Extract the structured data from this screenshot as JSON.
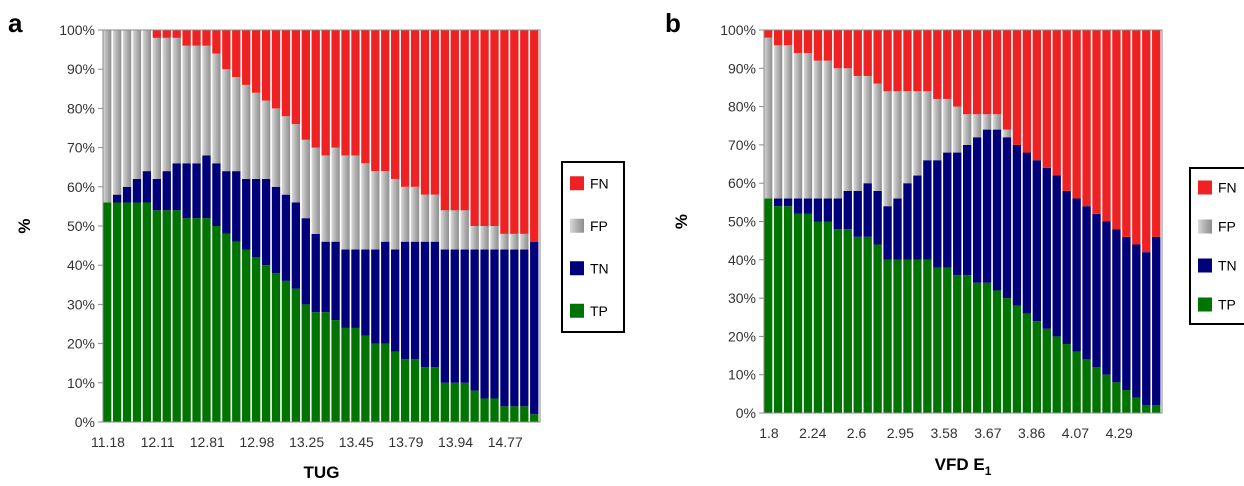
{
  "chart_data": [
    {
      "panel_label": "a",
      "type": "stacked_bar",
      "xlabel": "TUG",
      "ylabel": "%",
      "ylim": [
        0,
        100
      ],
      "y_ticks": [
        "0%",
        "10%",
        "20%",
        "30%",
        "40%",
        "50%",
        "60%",
        "70%",
        "80%",
        "90%",
        "100%"
      ],
      "x_tick_labels": [
        "11.18",
        "12.11",
        "12.81",
        "12.98",
        "13.25",
        "13.45",
        "13.79",
        "13.94",
        "14.77"
      ],
      "legend": [
        "FN",
        "FP",
        "TN",
        "TP"
      ],
      "legend_position": "right",
      "colors": {
        "FN": "#ee2222",
        "FP": "#b4b4b4",
        "TN": "#00007a",
        "TP": "#007400"
      },
      "series": [
        {
          "name": "TP",
          "values": [
            56,
            56,
            56,
            56,
            56,
            54,
            54,
            54,
            52,
            52,
            52,
            50,
            48,
            46,
            44,
            42,
            40,
            38,
            36,
            34,
            30,
            28,
            28,
            26,
            24,
            24,
            22,
            20,
            20,
            18,
            16,
            16,
            14,
            14,
            10,
            10,
            10,
            8,
            6,
            6,
            4,
            4,
            4,
            2
          ]
        },
        {
          "name": "TN",
          "values": [
            0,
            2,
            4,
            6,
            8,
            8,
            10,
            12,
            14,
            14,
            16,
            16,
            16,
            18,
            18,
            20,
            22,
            22,
            22,
            22,
            22,
            20,
            18,
            20,
            20,
            20,
            22,
            24,
            26,
            26,
            30,
            30,
            32,
            32,
            34,
            34,
            34,
            36,
            38,
            38,
            40,
            40,
            40,
            44
          ]
        },
        {
          "name": "FP",
          "values": [
            44,
            42,
            40,
            38,
            36,
            36,
            34,
            32,
            30,
            30,
            28,
            28,
            26,
            24,
            24,
            22,
            20,
            20,
            20,
            20,
            20,
            22,
            22,
            24,
            24,
            24,
            22,
            20,
            18,
            18,
            14,
            14,
            12,
            12,
            10,
            10,
            10,
            6,
            6,
            6,
            4,
            4,
            4,
            0
          ]
        },
        {
          "name": "FN",
          "values": [
            0,
            0,
            0,
            0,
            0,
            2,
            2,
            2,
            4,
            4,
            4,
            6,
            10,
            12,
            14,
            16,
            18,
            20,
            22,
            24,
            28,
            30,
            32,
            30,
            32,
            32,
            34,
            36,
            36,
            38,
            40,
            40,
            42,
            42,
            46,
            46,
            46,
            50,
            50,
            50,
            52,
            52,
            52,
            54
          ]
        }
      ]
    },
    {
      "panel_label": "b",
      "type": "stacked_bar",
      "xlabel_main": "VFD E",
      "xlabel_sub": "1",
      "ylabel": "%",
      "ylim": [
        0,
        100
      ],
      "y_ticks": [
        "0%",
        "10%",
        "20%",
        "30%",
        "40%",
        "50%",
        "60%",
        "70%",
        "80%",
        "90%",
        "100%"
      ],
      "x_tick_labels": [
        "1.8",
        "2.24",
        "2.6",
        "2.95",
        "3.58",
        "3.67",
        "3.86",
        "4.07",
        "4.29"
      ],
      "legend": [
        "FN",
        "FP",
        "TN",
        "TP"
      ],
      "legend_position": "right",
      "colors": {
        "FN": "#ee2222",
        "FP": "#b4b4b4",
        "TN": "#00007a",
        "TP": "#007400"
      },
      "series": [
        {
          "name": "TP",
          "values": [
            56,
            54,
            54,
            52,
            52,
            50,
            50,
            48,
            48,
            46,
            46,
            44,
            40,
            40,
            40,
            40,
            40,
            38,
            38,
            36,
            36,
            34,
            34,
            32,
            30,
            28,
            26,
            24,
            22,
            20,
            18,
            16,
            14,
            12,
            10,
            8,
            6,
            4,
            2,
            2
          ]
        },
        {
          "name": "TN",
          "values": [
            0,
            2,
            2,
            4,
            4,
            6,
            6,
            8,
            10,
            12,
            14,
            14,
            14,
            16,
            20,
            22,
            26,
            28,
            30,
            32,
            34,
            38,
            40,
            42,
            42,
            42,
            42,
            42,
            42,
            42,
            40,
            40,
            40,
            40,
            40,
            40,
            40,
            40,
            40,
            44
          ]
        },
        {
          "name": "FP",
          "values": [
            42,
            40,
            40,
            38,
            38,
            36,
            36,
            34,
            32,
            30,
            28,
            28,
            30,
            28,
            24,
            22,
            18,
            16,
            14,
            12,
            8,
            6,
            4,
            4,
            2,
            0,
            0,
            0,
            0,
            0,
            0,
            0,
            0,
            0,
            0,
            0,
            0,
            0,
            0,
            0
          ]
        },
        {
          "name": "FN",
          "values": [
            2,
            4,
            4,
            6,
            6,
            8,
            8,
            10,
            10,
            12,
            12,
            14,
            16,
            16,
            16,
            16,
            16,
            18,
            18,
            20,
            22,
            22,
            22,
            22,
            26,
            30,
            32,
            34,
            36,
            38,
            42,
            44,
            46,
            48,
            50,
            52,
            54,
            56,
            58,
            54
          ]
        }
      ]
    }
  ]
}
